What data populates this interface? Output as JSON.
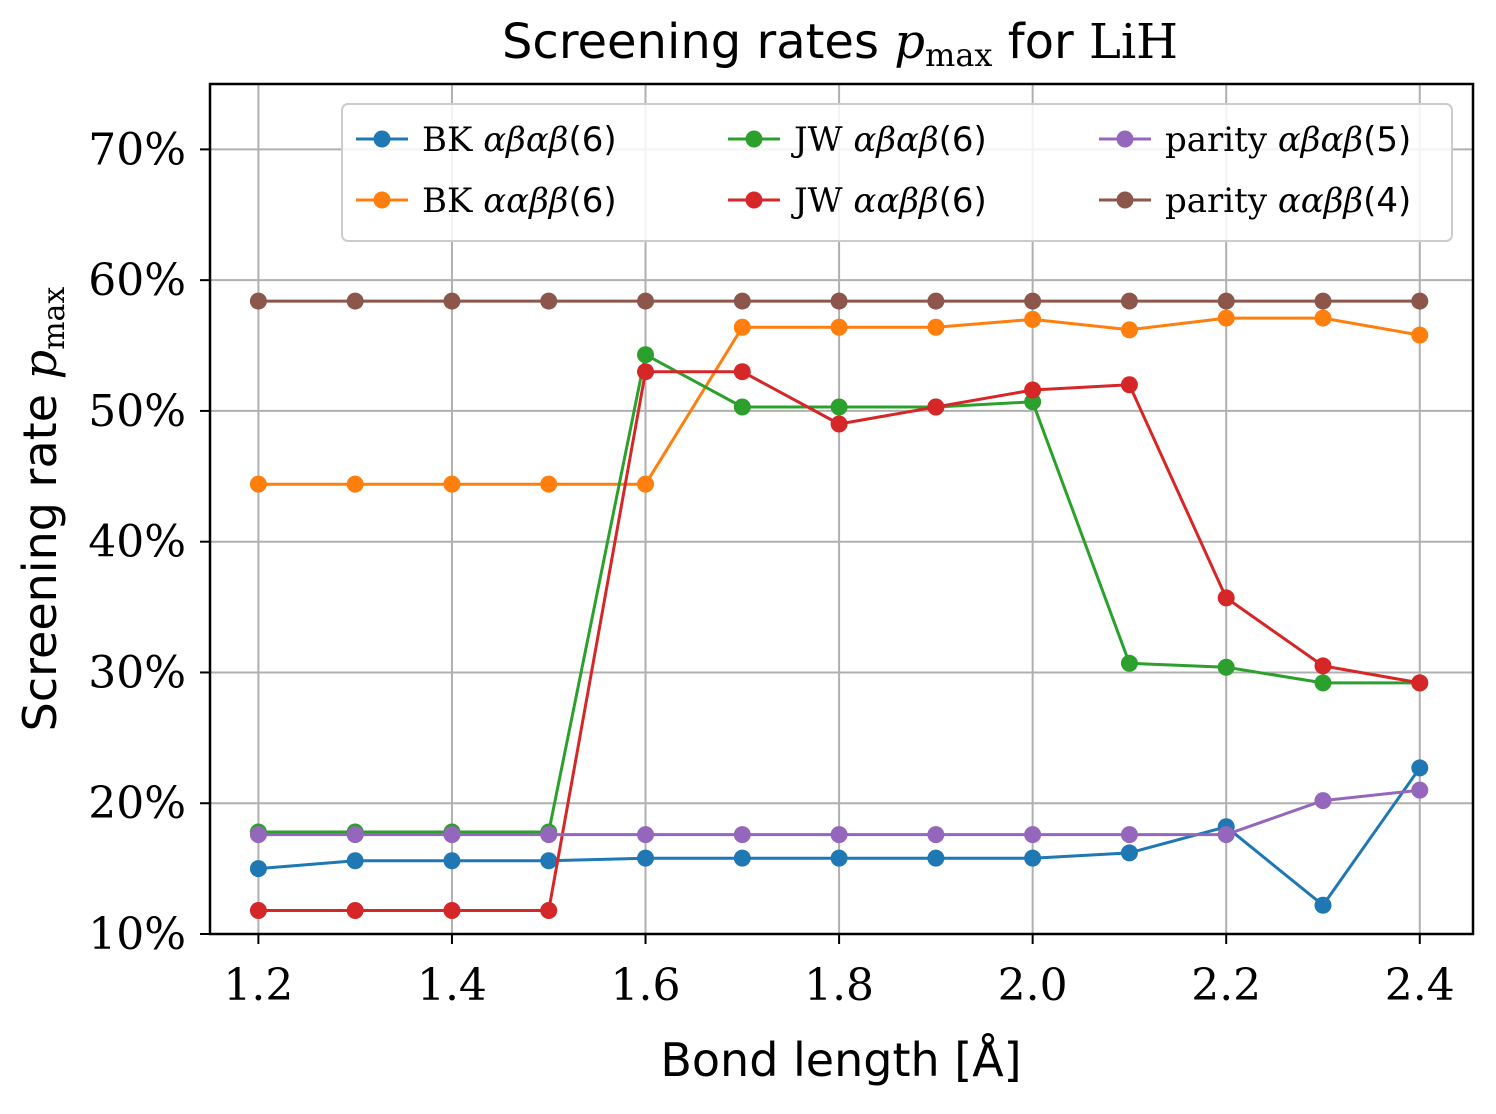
{
  "chart_data": {
    "type": "line",
    "title": "Screening rates p_max for LiH",
    "title_parts": {
      "pre": "Screening rates ",
      "sym": "p",
      "sub": "max",
      "mid": " for ",
      "mol": "LiH"
    },
    "xlabel": "Bond length [Å]",
    "ylabel": "Screening rate p_max",
    "ylabel_parts": {
      "pre": "Screening rate ",
      "sym": "p",
      "sub": "max"
    },
    "xlim": [
      1.15,
      2.455
    ],
    "ylim": [
      10,
      75
    ],
    "x_ticks": [
      "1.2",
      "1.4",
      "1.6",
      "1.8",
      "2.0",
      "2.2",
      "2.4"
    ],
    "y_ticks": [
      "10%",
      "20%",
      "30%",
      "40%",
      "50%",
      "60%",
      "70%"
    ],
    "grid": true,
    "legend_position": "top-right",
    "x": [
      1.2,
      1.3,
      1.4,
      1.5,
      1.6,
      1.7,
      1.8,
      1.9,
      2.0,
      2.1,
      2.2,
      2.3,
      2.4
    ],
    "series": [
      {
        "name": "BK αβαβ(6)",
        "color": "#1f77b4",
        "values": [
          15.0,
          15.6,
          15.6,
          15.6,
          15.8,
          15.8,
          15.8,
          15.8,
          15.8,
          16.2,
          18.2,
          12.2,
          22.7
        ]
      },
      {
        "name": "BK ααββ(6)",
        "color": "#ff7f0e",
        "values": [
          44.4,
          44.4,
          44.4,
          44.4,
          44.4,
          56.4,
          56.4,
          56.4,
          57.0,
          56.2,
          57.1,
          57.1,
          55.8
        ]
      },
      {
        "name": "JW αβαβ(6)",
        "color": "#2ca02c",
        "values": [
          17.8,
          17.8,
          17.8,
          17.8,
          54.3,
          50.3,
          50.3,
          50.3,
          50.7,
          30.7,
          30.4,
          29.2,
          29.2
        ]
      },
      {
        "name": "JW ααββ(6)",
        "color": "#d62728",
        "values": [
          11.8,
          11.8,
          11.8,
          11.8,
          53.0,
          53.0,
          49.0,
          50.3,
          51.6,
          52.0,
          35.7,
          30.5,
          29.2
        ]
      },
      {
        "name": "parity αβαβ(5)",
        "color": "#9467bd",
        "values": [
          17.6,
          17.6,
          17.6,
          17.6,
          17.6,
          17.6,
          17.6,
          17.6,
          17.6,
          17.6,
          17.6,
          20.2,
          21.0
        ]
      },
      {
        "name": "parity ααββ(4)",
        "color": "#8c564b",
        "values": [
          58.4,
          58.4,
          58.4,
          58.4,
          58.4,
          58.4,
          58.4,
          58.4,
          58.4,
          58.4,
          58.4,
          58.4,
          58.4
        ]
      }
    ],
    "legend_entries": [
      {
        "pre": "BK ",
        "sym": "αβαβ",
        "post": "(6)"
      },
      {
        "pre": "BK ",
        "sym": "ααββ",
        "post": "(6)"
      },
      {
        "pre": "JW ",
        "sym": "αβαβ",
        "post": "(6)"
      },
      {
        "pre": "JW ",
        "sym": "ααββ",
        "post": "(6)"
      },
      {
        "pre": "parity ",
        "sym": "αβαβ",
        "post": "(5)"
      },
      {
        "pre": "parity ",
        "sym": "ααββ",
        "post": "(4)"
      }
    ]
  }
}
